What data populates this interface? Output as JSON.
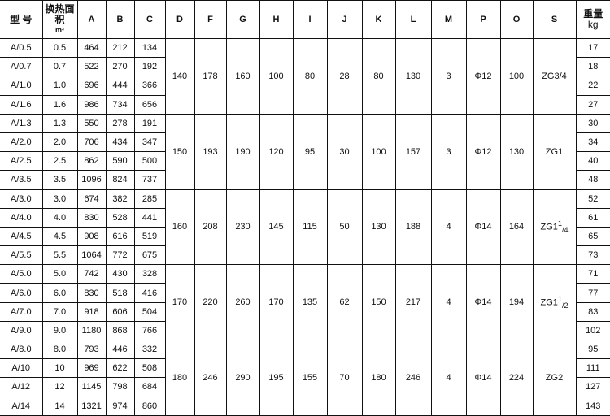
{
  "headers": {
    "model": "型 号",
    "area": "换热面积",
    "area_unit": "m²",
    "cols": [
      "A",
      "B",
      "C",
      "D",
      "F",
      "G",
      "H",
      "I",
      "J",
      "K",
      "L",
      "M",
      "P",
      "O",
      "S"
    ],
    "weight": "重量",
    "weight_unit": "kg"
  },
  "groups": [
    {
      "rows": [
        {
          "model": "A/0.5",
          "area": "0.5",
          "A": "464",
          "B": "212",
          "C": "134",
          "weight": "17"
        },
        {
          "model": "A/0.7",
          "area": "0.7",
          "A": "522",
          "B": "270",
          "C": "192",
          "weight": "18"
        },
        {
          "model": "A/1.0",
          "area": "1.0",
          "A": "696",
          "B": "444",
          "C": "366",
          "weight": "22"
        },
        {
          "model": "A/1.6",
          "area": "1.6",
          "A": "986",
          "B": "734",
          "C": "656",
          "weight": "27"
        }
      ],
      "shared": {
        "D": "140",
        "F": "178",
        "G": "160",
        "H": "100",
        "I": "80",
        "J": "28",
        "K": "80",
        "L": "130",
        "M": "3",
        "P": "Φ12",
        "O": "100",
        "S": "ZG3/4",
        "S_sup": "",
        "S_sub": ""
      }
    },
    {
      "rows": [
        {
          "model": "A/1.3",
          "area": "1.3",
          "A": "550",
          "B": "278",
          "C": "191",
          "weight": "30"
        },
        {
          "model": "A/2.0",
          "area": "2.0",
          "A": "706",
          "B": "434",
          "C": "347",
          "weight": "34"
        },
        {
          "model": "A/2.5",
          "area": "2.5",
          "A": "862",
          "B": "590",
          "C": "500",
          "weight": "40"
        },
        {
          "model": "A/3.5",
          "area": "3.5",
          "A": "1096",
          "B": "824",
          "C": "737",
          "weight": "48"
        }
      ],
      "shared": {
        "D": "150",
        "F": "193",
        "G": "190",
        "H": "120",
        "I": "95",
        "J": "30",
        "K": "100",
        "L": "157",
        "M": "3",
        "P": "Φ12",
        "O": "130",
        "S": "ZG1",
        "S_sup": "",
        "S_sub": ""
      }
    },
    {
      "rows": [
        {
          "model": "A/3.0",
          "area": "3.0",
          "A": "674",
          "B": "382",
          "C": "285",
          "weight": "52"
        },
        {
          "model": "A/4.0",
          "area": "4.0",
          "A": "830",
          "B": "528",
          "C": "441",
          "weight": "61"
        },
        {
          "model": "A/4.5",
          "area": "4.5",
          "A": "908",
          "B": "616",
          "C": "519",
          "weight": "65"
        },
        {
          "model": "A/5.5",
          "area": "5.5",
          "A": "1064",
          "B": "772",
          "C": "675",
          "weight": "73"
        }
      ],
      "shared": {
        "D": "160",
        "F": "208",
        "G": "230",
        "H": "145",
        "I": "115",
        "J": "50",
        "K": "130",
        "L": "188",
        "M": "4",
        "P": "Φ14",
        "O": "164",
        "S": "ZG1",
        "S_sup": "1",
        "S_sub": "/4"
      }
    },
    {
      "rows": [
        {
          "model": "A/5.0",
          "area": "5.0",
          "A": "742",
          "B": "430",
          "C": "328",
          "weight": "71"
        },
        {
          "model": "A/6.0",
          "area": "6.0",
          "A": "830",
          "B": "518",
          "C": "416",
          "weight": "77"
        },
        {
          "model": "A/7.0",
          "area": "7.0",
          "A": "918",
          "B": "606",
          "C": "504",
          "weight": "83"
        },
        {
          "model": "A/9.0",
          "area": "9.0",
          "A": "1180",
          "B": "868",
          "C": "766",
          "weight": "102"
        }
      ],
      "shared": {
        "D": "170",
        "F": "220",
        "G": "260",
        "H": "170",
        "I": "135",
        "J": "62",
        "K": "150",
        "L": "217",
        "M": "4",
        "P": "Φ14",
        "O": "194",
        "S": "ZG1",
        "S_sup": "1",
        "S_sub": "/2"
      }
    },
    {
      "rows": [
        {
          "model": "A/8.0",
          "area": "8.0",
          "A": "793",
          "B": "446",
          "C": "332",
          "weight": "95"
        },
        {
          "model": "A/10",
          "area": "10",
          "A": "969",
          "B": "622",
          "C": "508",
          "weight": "111"
        },
        {
          "model": "A/12",
          "area": "12",
          "A": "1145",
          "B": "798",
          "C": "684",
          "weight": "127"
        },
        {
          "model": "A/14",
          "area": "14",
          "A": "1321",
          "B": "974",
          "C": "860",
          "weight": "143"
        }
      ],
      "shared": {
        "D": "180",
        "F": "246",
        "G": "290",
        "H": "195",
        "I": "155",
        "J": "70",
        "K": "180",
        "L": "246",
        "M": "4",
        "P": "Φ14",
        "O": "224",
        "S": "ZG2",
        "S_sup": "",
        "S_sub": ""
      }
    }
  ]
}
